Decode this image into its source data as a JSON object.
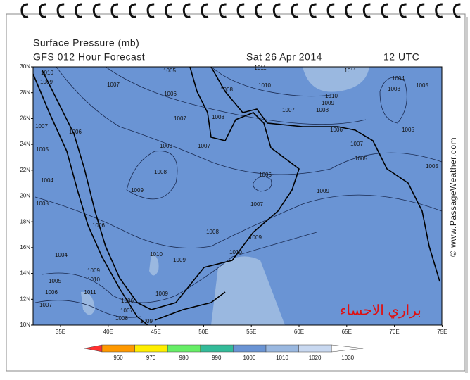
{
  "header": {
    "title": "Surface Pressure (mb)",
    "subtitle": "GFS 012 Hour Forecast",
    "date": "Sat 26 Apr 2014",
    "time": "12 UTC"
  },
  "map": {
    "lat_labels": [
      "30N",
      "28N",
      "26N",
      "24N",
      "22N",
      "20N",
      "18N",
      "16N",
      "14N",
      "12N",
      "10N"
    ],
    "lon_labels": [
      "35E",
      "40E",
      "45E",
      "50E",
      "55E",
      "60E",
      "65E",
      "70E",
      "75E"
    ],
    "contour_labels": [
      1010,
      1009,
      1005,
      1007,
      1006,
      1008,
      1011,
      1010,
      1011,
      1004,
      1003,
      1005,
      1010,
      1009,
      1008,
      1007,
      1008,
      1007,
      1007,
      1006,
      1006,
      1005,
      1007,
      1005,
      1009,
      1007,
      1005,
      1008,
      1006,
      1005,
      1004,
      1009,
      1009,
      1003,
      1007,
      1006,
      1008,
      1009,
      1010,
      1010,
      1004,
      1009,
      1009,
      1010,
      1005,
      1011,
      1009,
      1006,
      1007,
      1006,
      1007,
      1008,
      1009
    ]
  },
  "colorbar": {
    "ticks": [
      960,
      970,
      980,
      990,
      1000,
      1010,
      1020,
      1030
    ],
    "colors": [
      "#ff3030",
      "#ff9900",
      "#ffee00",
      "#66ee66",
      "#33bb99",
      "#6a94d4",
      "#9ab8e0",
      "#c8d8f0",
      "#ffffff"
    ]
  },
  "watermark": "© www.PassageWeather.com",
  "caption": "براري الاحساء"
}
